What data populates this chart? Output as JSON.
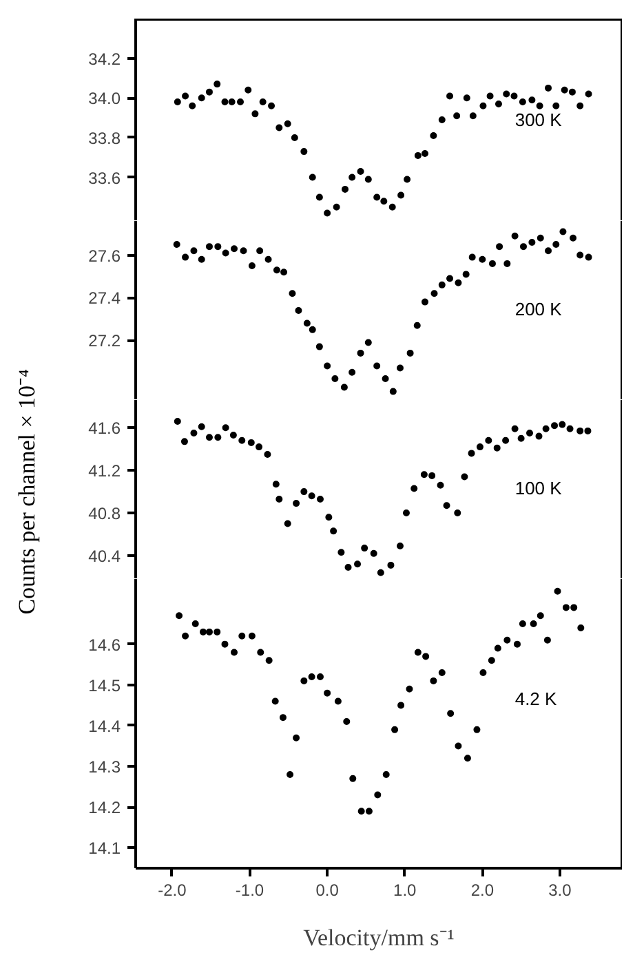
{
  "chart_data": [
    {
      "type": "scatter",
      "marker": "circle",
      "grid": false,
      "tick_labels": "y",
      "xlim": [
        -2.47,
        3.8
      ],
      "ylim": [
        33.38,
        34.4
      ],
      "yticks": [
        {
          "value": 33.6,
          "label": "33.6"
        },
        {
          "value": 33.8,
          "label": "33.8"
        },
        {
          "value": 34.0,
          "label": "34.0"
        },
        {
          "value": 34.2,
          "label": "34.2"
        }
      ],
      "series": [
        {
          "name": "300 K",
          "color": "#000000",
          "x": [
            -1.93,
            -1.83,
            -1.74,
            -1.62,
            -1.52,
            -1.42,
            -1.32,
            -1.23,
            -1.12,
            -1.02,
            -0.93,
            -0.83,
            -0.72,
            -0.62,
            -0.51,
            -0.42,
            -0.3,
            -0.19,
            -0.1,
            0.0,
            0.12,
            0.23,
            0.32,
            0.43,
            0.53,
            0.64,
            0.73,
            0.84,
            0.95,
            1.03,
            1.17,
            1.26,
            1.37,
            1.48,
            1.58,
            1.67,
            1.8,
            1.88,
            2.01,
            2.1,
            2.21,
            2.31,
            2.41,
            2.52,
            2.64,
            2.74,
            2.85,
            2.95,
            3.06,
            3.16,
            3.26,
            3.37
          ],
          "values": [
            33.98,
            34.01,
            33.96,
            34.0,
            34.03,
            34.07,
            33.98,
            33.98,
            33.98,
            34.04,
            33.92,
            33.98,
            33.96,
            33.85,
            33.87,
            33.8,
            33.73,
            33.6,
            33.5,
            33.42,
            33.45,
            33.54,
            33.6,
            33.63,
            33.59,
            33.5,
            33.48,
            33.45,
            33.51,
            33.59,
            33.71,
            33.72,
            33.81,
            33.89,
            34.01,
            33.91,
            34.0,
            33.91,
            33.96,
            34.01,
            33.97,
            34.02,
            34.01,
            33.98,
            33.99,
            33.96,
            34.05,
            33.96,
            34.04,
            34.03,
            33.96,
            34.02
          ]
        }
      ]
    },
    {
      "type": "scatter",
      "marker": "circle",
      "grid": false,
      "tick_labels": "y",
      "xlim": [
        -2.47,
        3.8
      ],
      "ylim": [
        26.92,
        27.76
      ],
      "yticks": [
        {
          "value": 27.2,
          "label": "27.2"
        },
        {
          "value": 27.4,
          "label": "27.4"
        },
        {
          "value": 27.6,
          "label": "27.6"
        }
      ],
      "series": [
        {
          "name": "200 K",
          "color": "#000000",
          "x": [
            -1.94,
            -1.83,
            -1.72,
            -1.62,
            -1.52,
            -1.41,
            -1.31,
            -1.2,
            -1.08,
            -0.97,
            -0.87,
            -0.76,
            -0.65,
            -0.56,
            -0.45,
            -0.37,
            -0.26,
            -0.19,
            -0.1,
            0.0,
            0.1,
            0.22,
            0.32,
            0.43,
            0.53,
            0.64,
            0.75,
            0.85,
            0.94,
            1.07,
            1.16,
            1.26,
            1.38,
            1.48,
            1.58,
            1.69,
            1.79,
            1.87,
            2.0,
            2.13,
            2.22,
            2.32,
            2.42,
            2.53,
            2.64,
            2.75,
            2.85,
            2.95,
            3.04,
            3.17,
            3.26,
            3.37
          ],
          "values": [
            27.65,
            27.59,
            27.62,
            27.58,
            27.64,
            27.64,
            27.61,
            27.63,
            27.62,
            27.55,
            27.62,
            27.58,
            27.53,
            27.52,
            27.42,
            27.34,
            27.28,
            27.25,
            27.17,
            27.08,
            27.02,
            26.98,
            27.05,
            27.14,
            27.19,
            27.08,
            27.02,
            26.96,
            27.07,
            27.14,
            27.27,
            27.38,
            27.42,
            27.46,
            27.49,
            27.47,
            27.51,
            27.59,
            27.58,
            27.56,
            27.64,
            27.56,
            27.69,
            27.64,
            27.66,
            27.68,
            27.62,
            27.65,
            27.71,
            27.68,
            27.6,
            27.59
          ]
        }
      ]
    },
    {
      "type": "scatter",
      "marker": "circle",
      "grid": false,
      "tick_labels": "y",
      "ylabel": "Counts per channel × 10⁻⁴",
      "xlim": [
        -2.47,
        3.8
      ],
      "ylim": [
        40.18,
        41.86
      ],
      "yticks": [
        {
          "value": 40.4,
          "label": "40.4"
        },
        {
          "value": 40.8,
          "label": "40.8"
        },
        {
          "value": 41.2,
          "label": "41.2"
        },
        {
          "value": 41.6,
          "label": "41.6"
        }
      ],
      "series": [
        {
          "name": "100 K",
          "color": "#000000",
          "x": [
            -1.93,
            -1.84,
            -1.72,
            -1.62,
            -1.52,
            -1.41,
            -1.31,
            -1.21,
            -1.1,
            -0.98,
            -0.88,
            -0.77,
            -0.66,
            -0.62,
            -0.51,
            -0.4,
            -0.3,
            -0.2,
            -0.09,
            0.02,
            0.08,
            0.18,
            0.27,
            0.39,
            0.48,
            0.6,
            0.69,
            0.82,
            0.94,
            1.02,
            1.12,
            1.25,
            1.35,
            1.46,
            1.54,
            1.68,
            1.77,
            1.86,
            1.97,
            2.08,
            2.19,
            2.3,
            2.42,
            2.5,
            2.61,
            2.73,
            2.82,
            2.93,
            3.03,
            3.13,
            3.26,
            3.36
          ],
          "values": [
            41.66,
            41.47,
            41.55,
            41.61,
            41.51,
            41.51,
            41.6,
            41.53,
            41.48,
            41.46,
            41.42,
            41.35,
            41.07,
            40.93,
            40.7,
            40.89,
            41.0,
            40.96,
            40.93,
            40.76,
            40.63,
            40.43,
            40.29,
            40.32,
            40.47,
            40.42,
            40.24,
            40.31,
            40.49,
            40.8,
            41.03,
            41.16,
            41.15,
            41.06,
            40.87,
            40.8,
            41.14,
            41.36,
            41.42,
            41.48,
            41.41,
            41.48,
            41.59,
            41.5,
            41.55,
            41.52,
            41.59,
            41.62,
            41.63,
            41.59,
            41.57,
            41.57
          ]
        }
      ]
    },
    {
      "type": "scatter",
      "marker": "circle",
      "grid": false,
      "xlabel": "Velocity/mm s⁻¹",
      "xlim": [
        -2.47,
        3.8
      ],
      "ylim": [
        14.05,
        14.76
      ],
      "xticks": [
        {
          "value": -2.0,
          "label": "-2.0"
        },
        {
          "value": -1.0,
          "label": "-1.0"
        },
        {
          "value": 0.0,
          "label": "0.0"
        },
        {
          "value": 1.0,
          "label": "1.0"
        },
        {
          "value": 2.0,
          "label": "2.0"
        },
        {
          "value": 3.0,
          "label": "3.0"
        }
      ],
      "yticks": [
        {
          "value": 14.1,
          "label": "14.1"
        },
        {
          "value": 14.2,
          "label": "14.2"
        },
        {
          "value": 14.3,
          "label": "14.3"
        },
        {
          "value": 14.4,
          "label": "14.4"
        },
        {
          "value": 14.5,
          "label": "14.5"
        },
        {
          "value": 14.6,
          "label": "14.6"
        }
      ],
      "series": [
        {
          "name": "4.2 K",
          "color": "#000000",
          "x": [
            -1.91,
            -1.83,
            -1.7,
            -1.6,
            -1.52,
            -1.42,
            -1.32,
            -1.2,
            -1.1,
            -0.97,
            -0.86,
            -0.75,
            -0.67,
            -0.57,
            -0.48,
            -0.4,
            -0.3,
            -0.2,
            -0.09,
            0.0,
            0.14,
            0.25,
            0.33,
            0.44,
            0.54,
            0.65,
            0.76,
            0.87,
            0.95,
            1.06,
            1.17,
            1.27,
            1.37,
            1.48,
            1.59,
            1.69,
            1.81,
            1.93,
            2.01,
            2.12,
            2.2,
            2.32,
            2.45,
            2.52,
            2.66,
            2.75,
            2.84,
            2.97,
            3.08,
            3.18,
            3.27
          ],
          "values": [
            14.67,
            14.62,
            14.65,
            14.63,
            14.63,
            14.63,
            14.6,
            14.58,
            14.62,
            14.62,
            14.58,
            14.56,
            14.46,
            14.42,
            14.28,
            14.37,
            14.51,
            14.52,
            14.52,
            14.48,
            14.46,
            14.41,
            14.27,
            14.19,
            14.19,
            14.23,
            14.28,
            14.39,
            14.45,
            14.49,
            14.58,
            14.57,
            14.51,
            14.53,
            14.43,
            14.35,
            14.32,
            14.39,
            14.53,
            14.56,
            14.59,
            14.61,
            14.6,
            14.65,
            14.65,
            14.67,
            14.61,
            14.73,
            14.69,
            14.69,
            14.64
          ]
        }
      ]
    }
  ]
}
